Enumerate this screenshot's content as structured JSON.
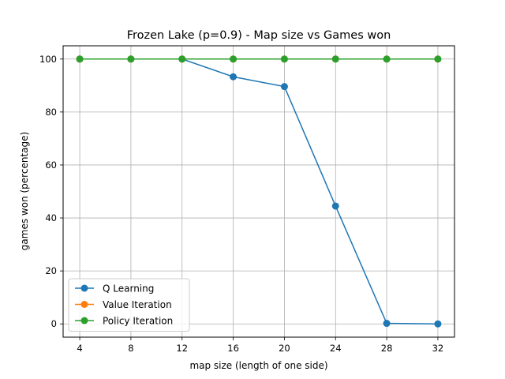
{
  "chart_data": {
    "type": "line",
    "title": "Frozen Lake (p=0.9) - Map size vs Games won",
    "xlabel": "map size (length of one side)",
    "ylabel": "games won (percentage)",
    "x": [
      4,
      8,
      12,
      16,
      20,
      24,
      28,
      32
    ],
    "xticks": [
      4,
      8,
      12,
      16,
      20,
      24,
      28,
      32
    ],
    "yticks": [
      0,
      20,
      40,
      60,
      80,
      100
    ],
    "xlim": [
      2.7,
      33.3
    ],
    "ylim": [
      -5,
      105
    ],
    "grid": true,
    "legend_position": "lower-left",
    "series": [
      {
        "name": "Q Learning",
        "color": "#1f77b4",
        "values": [
          100,
          100,
          100,
          93.3,
          89.6,
          44.5,
          0.2,
          0
        ]
      },
      {
        "name": "Value Iteration",
        "color": "#ff7f0e",
        "values": [
          100,
          100,
          100,
          100,
          100,
          100,
          100,
          100
        ]
      },
      {
        "name": "Policy Iteration",
        "color": "#2ca02c",
        "values": [
          100,
          100,
          100,
          100,
          100,
          100,
          100,
          100
        ]
      }
    ]
  }
}
